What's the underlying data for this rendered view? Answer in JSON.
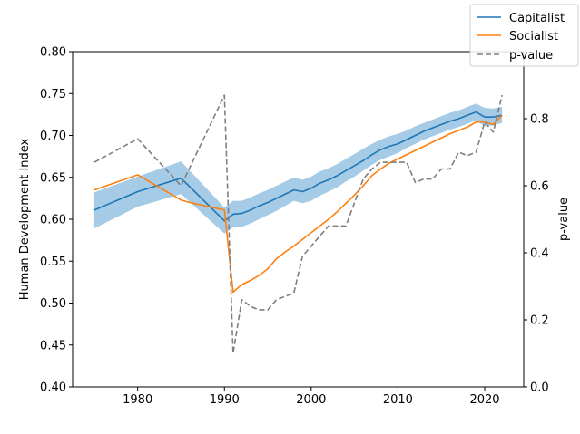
{
  "chart_data": {
    "type": "line",
    "xlim": [
      1972.5,
      2024.5
    ],
    "x_ticks": [
      1980,
      1990,
      2000,
      2010,
      2020
    ],
    "left_axis": {
      "label": "Human Development Index",
      "lim": [
        0.4,
        0.8
      ],
      "ticks": [
        "0.40",
        "0.45",
        "0.50",
        "0.55",
        "0.60",
        "0.65",
        "0.70",
        "0.75",
        "0.80"
      ]
    },
    "right_axis": {
      "label": "p-value",
      "lim": [
        0.0,
        1.0
      ],
      "ticks": [
        "0.0",
        "0.2",
        "0.4",
        "0.6",
        "0.8"
      ]
    },
    "legend": {
      "placement": "top-right",
      "entries": [
        "Capitalist",
        "Socialist",
        "p-value"
      ]
    },
    "colors": {
      "capitalist": "#1f77b4",
      "capitalist_band": "#a6cbe6",
      "socialist": "#ff7f0e",
      "pvalue": "#7f7f7f"
    },
    "series": [
      {
        "name": "Capitalist",
        "axis": "left",
        "x": [
          1975,
          1980,
          1985,
          1990,
          1991,
          1992,
          1993,
          1994,
          1995,
          1996,
          1997,
          1998,
          1999,
          2000,
          2001,
          2002,
          2003,
          2004,
          2005,
          2006,
          2007,
          2008,
          2009,
          2010,
          2011,
          2012,
          2013,
          2014,
          2015,
          2016,
          2017,
          2018,
          2019,
          2020,
          2021,
          2022
        ],
        "values": [
          0.611,
          0.633,
          0.649,
          0.598,
          0.606,
          0.607,
          0.611,
          0.616,
          0.62,
          0.625,
          0.63,
          0.635,
          0.633,
          0.637,
          0.643,
          0.647,
          0.652,
          0.658,
          0.664,
          0.67,
          0.677,
          0.683,
          0.687,
          0.69,
          0.695,
          0.7,
          0.705,
          0.709,
          0.713,
          0.717,
          0.72,
          0.724,
          0.728,
          0.722,
          0.722,
          0.724
        ],
        "band_lower": [
          0.589,
          0.615,
          0.63,
          0.583,
          0.59,
          0.591,
          0.595,
          0.6,
          0.605,
          0.61,
          0.616,
          0.622,
          0.619,
          0.622,
          0.628,
          0.633,
          0.638,
          0.645,
          0.651,
          0.658,
          0.665,
          0.671,
          0.675,
          0.679,
          0.685,
          0.69,
          0.695,
          0.699,
          0.703,
          0.707,
          0.71,
          0.714,
          0.718,
          0.711,
          0.712,
          0.715
        ],
        "band_upper": [
          0.632,
          0.651,
          0.669,
          0.614,
          0.622,
          0.622,
          0.626,
          0.631,
          0.635,
          0.64,
          0.645,
          0.65,
          0.647,
          0.651,
          0.657,
          0.661,
          0.666,
          0.672,
          0.678,
          0.684,
          0.69,
          0.695,
          0.699,
          0.702,
          0.706,
          0.711,
          0.715,
          0.719,
          0.723,
          0.727,
          0.73,
          0.734,
          0.738,
          0.733,
          0.732,
          0.734
        ]
      },
      {
        "name": "Socialist",
        "axis": "left",
        "x": [
          1975,
          1980,
          1985,
          1986,
          1990,
          1991,
          1992,
          1993,
          1994,
          1995,
          1996,
          1997,
          1998,
          1999,
          2000,
          2001,
          2002,
          2003,
          2004,
          2005,
          2006,
          2007,
          2008,
          2009,
          2010,
          2011,
          2012,
          2013,
          2014,
          2015,
          2016,
          2017,
          2018,
          2019,
          2020,
          2021,
          2022
        ],
        "values": [
          0.635,
          0.653,
          0.623,
          0.62,
          0.611,
          0.513,
          0.522,
          0.527,
          0.533,
          0.541,
          0.553,
          0.561,
          0.568,
          0.576,
          0.584,
          0.592,
          0.6,
          0.609,
          0.619,
          0.629,
          0.64,
          0.652,
          0.66,
          0.667,
          0.672,
          0.677,
          0.682,
          0.687,
          0.692,
          0.697,
          0.702,
          0.706,
          0.71,
          0.716,
          0.716,
          0.713,
          0.724
        ]
      },
      {
        "name": "p-value",
        "axis": "right",
        "style": "dashed",
        "x": [
          1975,
          1980,
          1985,
          1990,
          1991,
          1992,
          1993,
          1994,
          1995,
          1996,
          1997,
          1998,
          1999,
          2000,
          2001,
          2002,
          2003,
          2004,
          2005,
          2006,
          2007,
          2008,
          2009,
          2010,
          2011,
          2012,
          2013,
          2014,
          2015,
          2016,
          2017,
          2018,
          2019,
          2020,
          2021,
          2022
        ],
        "values": [
          0.67,
          0.74,
          0.6,
          0.87,
          0.1,
          0.26,
          0.24,
          0.23,
          0.23,
          0.26,
          0.27,
          0.28,
          0.39,
          0.42,
          0.45,
          0.48,
          0.48,
          0.48,
          0.55,
          0.62,
          0.65,
          0.67,
          0.67,
          0.67,
          0.67,
          0.61,
          0.62,
          0.62,
          0.65,
          0.65,
          0.7,
          0.69,
          0.7,
          0.79,
          0.76,
          0.87
        ]
      }
    ]
  }
}
